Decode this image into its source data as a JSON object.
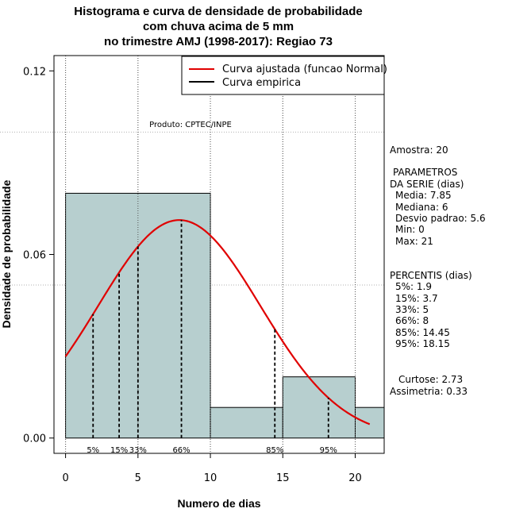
{
  "chart_data": {
    "type": "bar",
    "title_lines": [
      "Histograma e curva de densidade de probabilidade",
      "com chuva acima de 5 mm",
      "no trimestre AMJ (1998-2017): Regiao 73"
    ],
    "xlabel": "Numero de dias",
    "ylabel": "Densidade de probabilidade",
    "xlim": [
      -0.8,
      22
    ],
    "ylim": [
      -0.005,
      0.125
    ],
    "x_ticks": [
      0,
      5,
      10,
      15,
      20
    ],
    "y_ticks": [
      0.0,
      0.06,
      0.12
    ],
    "y_tick_labels": [
      "0.00",
      "0.06",
      "0.12"
    ],
    "y_gridlines": [
      0.1,
      0.05
    ],
    "x_gridlines": [
      0,
      5,
      10,
      15,
      20
    ],
    "histogram": {
      "bins": [
        [
          0,
          10
        ],
        [
          10,
          15
        ],
        [
          15,
          20
        ],
        [
          20,
          22
        ]
      ],
      "density": [
        0.08,
        0.01,
        0.02,
        0.01
      ],
      "color": "#b7cfcf"
    },
    "fitted_curve": {
      "name": "Curva ajustada (funcao Normal)",
      "color": "#e00000",
      "distribution": "normal",
      "mean": 7.85,
      "sd": 5.6,
      "x_range": [
        0,
        21
      ]
    },
    "empirical_curve": {
      "name": "Curva empirica",
      "color": "#000000"
    },
    "percentiles": [
      {
        "label": "5%",
        "x": 1.9
      },
      {
        "label": "15%",
        "x": 3.7
      },
      {
        "label": "33%",
        "x": 5
      },
      {
        "label": "66%",
        "x": 8
      },
      {
        "label": "85%",
        "x": 14.45
      },
      {
        "label": "95%",
        "x": 18.15
      }
    ],
    "produto": "Produto: CPTEC/INPE",
    "legend_position": "top-right"
  },
  "side_panel": {
    "amostra": "Amostra: 20",
    "param_title_1": "PARAMETROS",
    "param_title_2": "DA SERIE (dias)",
    "media": "Media: 7.85",
    "mediana": "Mediana: 6",
    "desvio": "Desvio padrao: 5.6",
    "min": "Min: 0",
    "max": "Max: 21",
    "perc_title": "PERCENTIS (dias)",
    "p5": "5%: 1.9",
    "p15": "15%: 3.7",
    "p33": "33%: 5",
    "p66": "66%: 8",
    "p85": "85%: 14.45",
    "p95": "95%: 18.15",
    "curtose": "Curtose: 2.73",
    "assimetria": "Assimetria: 0.33"
  }
}
